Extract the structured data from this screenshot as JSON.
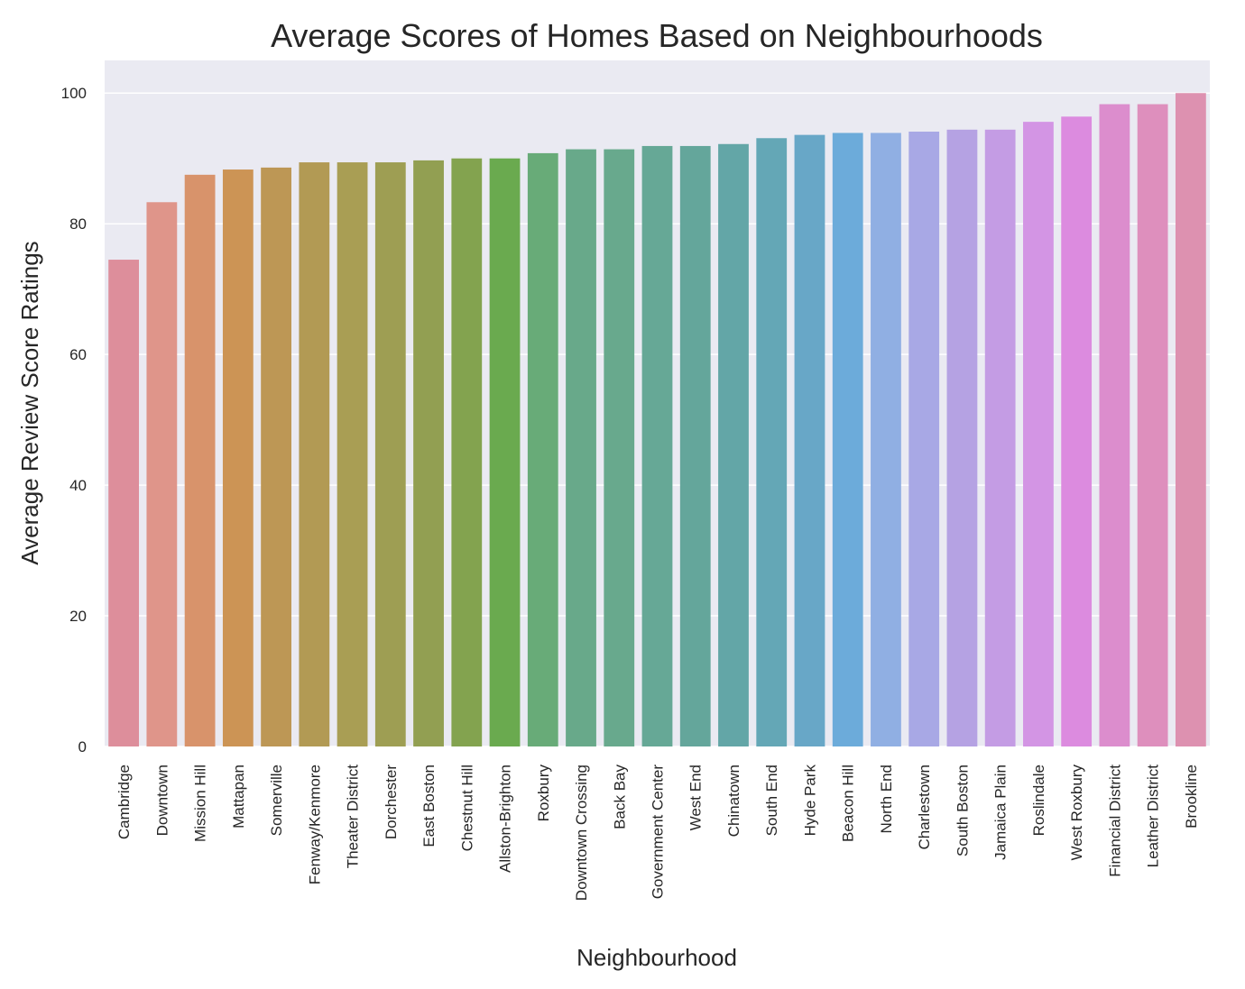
{
  "chart_data": {
    "type": "bar",
    "title": "Average Scores of Homes Based on Neighbourhoods",
    "xlabel": "Neighbourhood",
    "ylabel": "Average Review Score Ratings",
    "ylim": [
      0,
      105
    ],
    "yticks": [
      0,
      20,
      40,
      60,
      80,
      100
    ],
    "grid": true,
    "legend": "none",
    "categories": [
      "Cambridge",
      "Downtown",
      "Mission Hill",
      "Mattapan",
      "Somerville",
      "Fenway/Kenmore",
      "Theater District",
      "Dorchester",
      "East Boston",
      "Chestnut Hill",
      "Allston-Brighton",
      "Roxbury",
      "Downtown Crossing",
      "Back Bay",
      "Government Center",
      "West End",
      "Chinatown",
      "South End",
      "Hyde Park",
      "Beacon Hill",
      "North End",
      "Charlestown",
      "South Boston",
      "Jamaica Plain",
      "Roslindale",
      "West Roxbury",
      "Financial District",
      "Leather District",
      "Brookline"
    ],
    "values": [
      74.5,
      83.3,
      87.5,
      88.3,
      88.6,
      89.4,
      89.4,
      89.4,
      89.7,
      90.0,
      90.0,
      90.8,
      91.4,
      91.4,
      91.9,
      91.9,
      92.2,
      93.1,
      93.6,
      93.9,
      93.9,
      94.1,
      94.4,
      94.4,
      95.6,
      96.4,
      98.3,
      98.3,
      100.0
    ],
    "colors": [
      "#dd8e9b",
      "#df958a",
      "#d8936b",
      "#cc9455",
      "#bd9755",
      "#b29a54",
      "#a99e54",
      "#9e9e53",
      "#929f52",
      "#83a34f",
      "#6aaa4f",
      "#68ab78",
      "#68a98a",
      "#68a98d",
      "#66a896",
      "#64a69b",
      "#63a6a7",
      "#64a7b6",
      "#68a7c7",
      "#6cabda",
      "#90afe3",
      "#a8a8e5",
      "#b5a2e3",
      "#c49ce4",
      "#d395e4",
      "#dc8bdf",
      "#dc8dcd",
      "#de8fbd",
      "#dd91b0"
    ],
    "background_color": "#eaeaf2",
    "grid_color": "#ffffff"
  }
}
